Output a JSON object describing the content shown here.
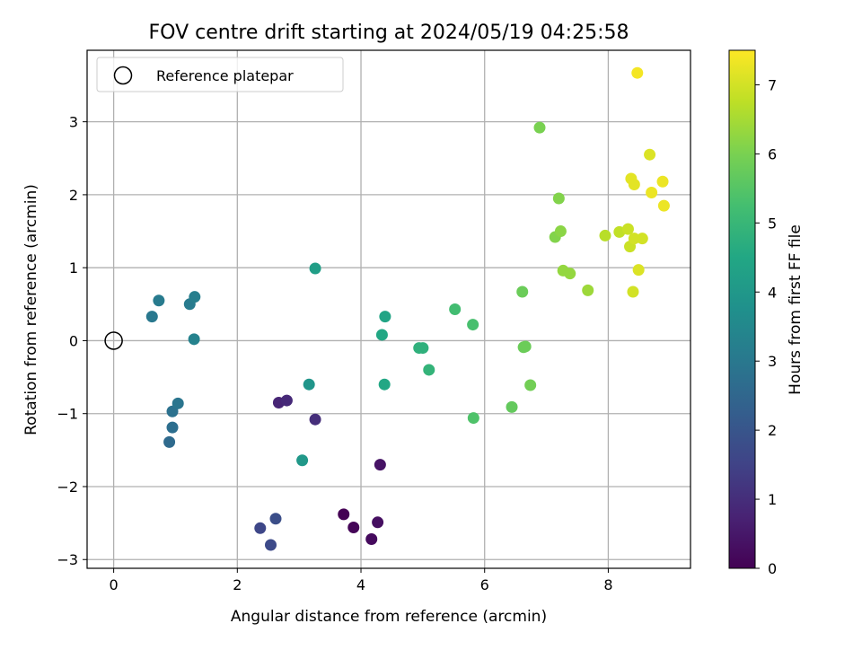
{
  "chart_data": {
    "type": "scatter",
    "title": "FOV centre drift starting at 2024/05/19 04:25:58",
    "xlabel": "Angular distance from reference (arcmin)",
    "ylabel": "Rotation from reference (arcmin)",
    "xlim": [
      -0.43,
      9.33
    ],
    "ylim": [
      -3.12,
      3.98
    ],
    "xticks": [
      0,
      2,
      4,
      6,
      8
    ],
    "yticks": [
      -3,
      -2,
      -1,
      0,
      1,
      2,
      3
    ],
    "xtick_labels": [
      "0",
      "2",
      "4",
      "6",
      "8"
    ],
    "ytick_labels": [
      "−3",
      "−2",
      "−1",
      "0",
      "1",
      "2",
      "3"
    ],
    "grid": true,
    "legend": {
      "placement": "top-left",
      "entries": [
        "Reference platepar"
      ]
    },
    "reference_point": {
      "x": 0,
      "y": 0
    },
    "colorbar": {
      "label": "Hours from first FF file",
      "range": [
        0,
        7.5
      ],
      "ticks": [
        0,
        1,
        2,
        3,
        4,
        5,
        6,
        7
      ],
      "tick_labels": [
        "0",
        "1",
        "2",
        "3",
        "4",
        "5",
        "6",
        "7"
      ],
      "colormap": "viridis"
    },
    "points": [
      {
        "x": 3.72,
        "y": -2.38,
        "c": 0.0
      },
      {
        "x": 3.88,
        "y": -2.56,
        "c": 0.1
      },
      {
        "x": 4.17,
        "y": -2.72,
        "c": 0.2
      },
      {
        "x": 4.27,
        "y": -2.49,
        "c": 0.3
      },
      {
        "x": 4.31,
        "y": -1.7,
        "c": 0.4
      },
      {
        "x": 2.67,
        "y": -0.85,
        "c": 0.8
      },
      {
        "x": 2.8,
        "y": -0.82,
        "c": 0.9
      },
      {
        "x": 3.26,
        "y": -1.08,
        "c": 1.0
      },
      {
        "x": 2.37,
        "y": -2.57,
        "c": 1.6
      },
      {
        "x": 2.54,
        "y": -2.8,
        "c": 1.7
      },
      {
        "x": 2.62,
        "y": -2.44,
        "c": 1.8
      },
      {
        "x": 0.9,
        "y": -1.39,
        "c": 2.6
      },
      {
        "x": 0.95,
        "y": -1.19,
        "c": 2.7
      },
      {
        "x": 0.95,
        "y": -0.97,
        "c": 2.8
      },
      {
        "x": 1.04,
        "y": -0.86,
        "c": 2.9
      },
      {
        "x": 0.62,
        "y": 0.33,
        "c": 3.0
      },
      {
        "x": 0.73,
        "y": 0.55,
        "c": 3.1
      },
      {
        "x": 1.23,
        "y": 0.5,
        "c": 3.1
      },
      {
        "x": 1.31,
        "y": 0.6,
        "c": 3.2
      },
      {
        "x": 1.3,
        "y": 0.02,
        "c": 3.3
      },
      {
        "x": 3.16,
        "y": -0.6,
        "c": 3.9
      },
      {
        "x": 3.05,
        "y": -1.64,
        "c": 4.0
      },
      {
        "x": 3.26,
        "y": 0.99,
        "c": 4.2
      },
      {
        "x": 4.39,
        "y": 0.33,
        "c": 4.4
      },
      {
        "x": 4.34,
        "y": 0.08,
        "c": 4.5
      },
      {
        "x": 4.38,
        "y": -0.6,
        "c": 4.5
      },
      {
        "x": 4.94,
        "y": -0.1,
        "c": 4.8
      },
      {
        "x": 5.0,
        "y": -0.1,
        "c": 4.8
      },
      {
        "x": 5.1,
        "y": -0.4,
        "c": 4.9
      },
      {
        "x": 5.52,
        "y": 0.43,
        "c": 5.2
      },
      {
        "x": 5.81,
        "y": 0.22,
        "c": 5.3
      },
      {
        "x": 5.82,
        "y": -1.06,
        "c": 5.4
      },
      {
        "x": 6.44,
        "y": -0.91,
        "c": 5.7
      },
      {
        "x": 6.61,
        "y": 0.67,
        "c": 5.8
      },
      {
        "x": 6.63,
        "y": -0.09,
        "c": 5.8
      },
      {
        "x": 6.66,
        "y": -0.08,
        "c": 5.8
      },
      {
        "x": 6.74,
        "y": -0.61,
        "c": 5.9
      },
      {
        "x": 6.89,
        "y": 2.92,
        "c": 6.0
      },
      {
        "x": 7.2,
        "y": 1.95,
        "c": 6.1
      },
      {
        "x": 7.14,
        "y": 1.42,
        "c": 6.1
      },
      {
        "x": 7.23,
        "y": 1.5,
        "c": 6.2
      },
      {
        "x": 7.27,
        "y": 0.96,
        "c": 6.3
      },
      {
        "x": 7.38,
        "y": 0.92,
        "c": 6.3
      },
      {
        "x": 7.67,
        "y": 0.69,
        "c": 6.4
      },
      {
        "x": 7.95,
        "y": 1.44,
        "c": 6.7
      },
      {
        "x": 8.18,
        "y": 1.49,
        "c": 6.8
      },
      {
        "x": 8.32,
        "y": 1.53,
        "c": 6.9
      },
      {
        "x": 8.35,
        "y": 1.29,
        "c": 6.9
      },
      {
        "x": 8.42,
        "y": 1.4,
        "c": 7.0
      },
      {
        "x": 8.55,
        "y": 1.4,
        "c": 7.0
      },
      {
        "x": 8.4,
        "y": 0.67,
        "c": 7.0
      },
      {
        "x": 8.49,
        "y": 0.97,
        "c": 7.1
      },
      {
        "x": 8.67,
        "y": 2.55,
        "c": 7.1
      },
      {
        "x": 8.37,
        "y": 2.22,
        "c": 7.2
      },
      {
        "x": 8.42,
        "y": 2.14,
        "c": 7.2
      },
      {
        "x": 8.7,
        "y": 2.03,
        "c": 7.3
      },
      {
        "x": 8.88,
        "y": 2.18,
        "c": 7.3
      },
      {
        "x": 8.9,
        "y": 1.85,
        "c": 7.3
      },
      {
        "x": 8.47,
        "y": 3.67,
        "c": 7.4
      }
    ]
  }
}
